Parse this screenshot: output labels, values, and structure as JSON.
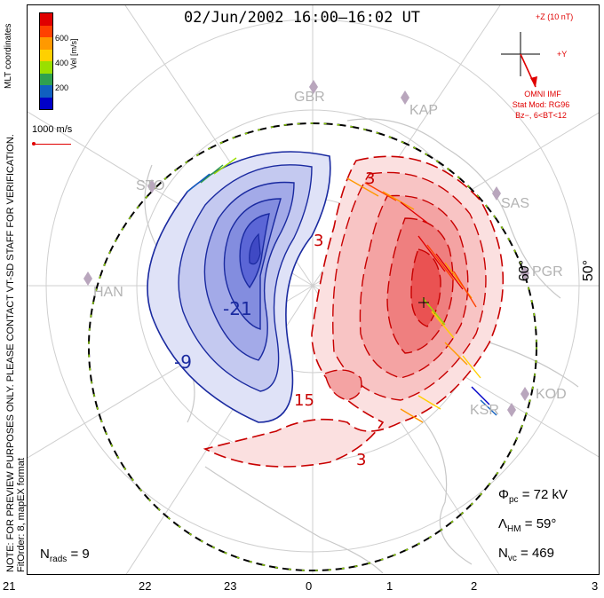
{
  "title": "02/Jun/2002  16:00–16:02  UT",
  "side_note_line1": "NOTE: FOR PREVIEW PURPOSES ONLY. PLEASE CONTACT VT-SD STAFF FOR VERIFICATION.",
  "side_note_line2": "FitOrder: 8, mapEX format",
  "mlt_coords_label": "MLT coordinates",
  "colorbar": {
    "label": "Vel [m/s]",
    "ticks": [
      "600",
      "400",
      "200"
    ],
    "colors": [
      "#e00000",
      "#ff4000",
      "#ff9900",
      "#ffd000",
      "#9adf00",
      "#2fa050",
      "#1060c0",
      "#0000c8"
    ]
  },
  "reference_vector": "1000 m/s",
  "imf": {
    "bz_label": "+Z (10 nT)",
    "by_label": "+Y",
    "source": "OMNI IMF",
    "model": "Stat Mod: RG96",
    "condition": "Bz−, 6<BT<12"
  },
  "stats": {
    "phi_pc_symbol": "Φ",
    "phi_pc_sub": "pc",
    "phi_pc_value": "= 72 kV",
    "lambda_hm_symbol": "Λ",
    "lambda_hm_sub": "HM",
    "lambda_hm_value": "= 59°",
    "n_vc_symbol": "N",
    "n_vc_sub": "vc",
    "n_vc_value": "= 469",
    "n_rads_symbol": "N",
    "n_rads_sub": "rads",
    "n_rads_value": "= 9"
  },
  "mlt_axis": [
    "21",
    "22",
    "23",
    "0",
    "1",
    "2",
    "3"
  ],
  "latitude_labels": [
    "60°",
    "50°"
  ],
  "radar_sites": [
    "GBR",
    "KAP",
    "SAS",
    "PGR",
    "KOD",
    "KSR",
    "HAN",
    "STO"
  ],
  "contours": {
    "negative": [
      "-21",
      "-9"
    ],
    "positive": [
      "3",
      "3",
      "15",
      "3"
    ]
  },
  "colors": {
    "negative_fill": "#5b66d6",
    "positive_fill": "#ef4b4b",
    "negative_line": "#1a2aa0",
    "positive_line": "#c80000",
    "map_line": "#cccccc"
  }
}
